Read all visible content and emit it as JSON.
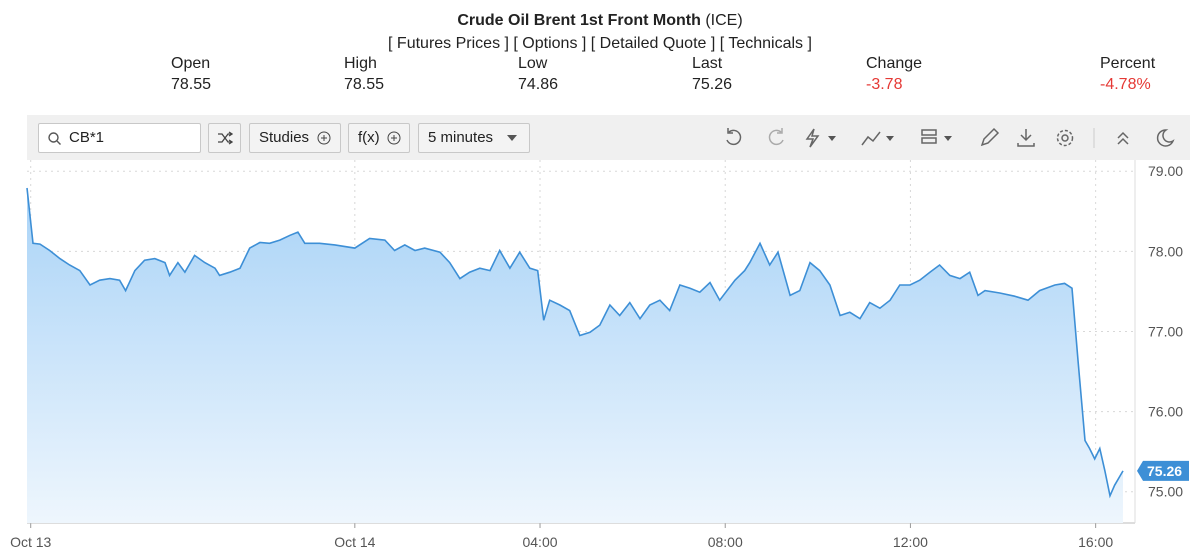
{
  "header": {
    "title": "Crude Oil Brent 1st Front Month",
    "exchange": "(ICE)",
    "links": [
      "[ Futures Prices ]",
      "[ Options ]",
      "[ Detailed Quote ]",
      "[ Technicals ]"
    ]
  },
  "quote": {
    "labels": [
      "Open",
      "High",
      "Low",
      "Last",
      "Change",
      "Percent"
    ],
    "values": [
      "78.55",
      "78.55",
      "74.86",
      "75.26",
      "-3.78",
      "-4.78%"
    ]
  },
  "toolbar": {
    "symbol": "CB*1",
    "studies": "Studies",
    "fx": "f(x)",
    "interval": "5 minutes"
  },
  "chart_data": {
    "type": "line",
    "color": "#3d8fd6",
    "grid": true,
    "x": [
      -7.08,
      -6.95,
      -6.8,
      -6.59,
      -6.37,
      -6.16,
      -5.94,
      -5.72,
      -5.51,
      -5.29,
      -5.08,
      -4.95,
      -4.75,
      -4.54,
      -4.32,
      -4.1,
      -4.0,
      -3.82,
      -3.67,
      -3.46,
      -3.24,
      -3.02,
      -2.92,
      -2.7,
      -2.48,
      -2.27,
      -2.05,
      -1.84,
      -1.62,
      -1.4,
      -1.23,
      -1.08,
      -0.76,
      -0.43,
      0,
      0.32,
      0.65,
      0.86,
      1.08,
      1.3,
      1.51,
      1.84,
      2.05,
      2.27,
      2.48,
      2.7,
      2.92,
      3.13,
      3.35,
      3.56,
      3.78,
      3.95,
      4.08,
      4.21,
      4.43,
      4.64,
      4.86,
      5.08,
      5.29,
      5.51,
      5.72,
      5.94,
      6.16,
      6.37,
      6.59,
      6.8,
      7.02,
      7.24,
      7.45,
      7.67,
      7.88,
      8.21,
      8.42,
      8.53,
      8.75,
      8.96,
      9.14,
      9.4,
      9.61,
      9.83,
      10.04,
      10.26,
      10.48,
      10.69,
      10.91,
      11.12,
      11.34,
      11.56,
      11.77,
      11.99,
      12.2,
      12.42,
      12.63,
      12.85,
      13.07,
      13.28,
      13.46,
      13.61,
      13.93,
      14.25,
      14.54,
      14.79,
      15.12,
      15.33,
      15.49,
      15.62,
      15.77,
      15.87,
      15.98,
      16.09,
      16.2,
      16.31,
      16.41,
      16.59
    ],
    "values": [
      78.79,
      78.1,
      78.09,
      78.01,
      77.91,
      77.83,
      77.76,
      77.58,
      77.64,
      77.66,
      77.64,
      77.51,
      77.76,
      77.89,
      77.91,
      77.86,
      77.7,
      77.86,
      77.74,
      77.95,
      77.86,
      77.79,
      77.7,
      77.74,
      77.79,
      78.04,
      78.11,
      78.1,
      78.14,
      78.2,
      78.24,
      78.1,
      78.1,
      78.08,
      78.04,
      78.16,
      78.14,
      78.01,
      78.08,
      78.01,
      78.04,
      77.99,
      77.86,
      77.66,
      77.74,
      77.79,
      77.76,
      78.01,
      77.79,
      77.99,
      77.79,
      77.76,
      77.14,
      77.39,
      77.33,
      77.26,
      76.95,
      76.99,
      77.08,
      77.33,
      77.2,
      77.36,
      77.16,
      77.33,
      77.39,
      77.26,
      77.58,
      77.54,
      77.49,
      77.61,
      77.39,
      77.64,
      77.76,
      77.86,
      78.1,
      77.83,
      77.99,
      77.45,
      77.51,
      77.86,
      77.76,
      77.58,
      77.2,
      77.24,
      77.16,
      77.36,
      77.29,
      77.39,
      77.58,
      77.58,
      77.64,
      77.74,
      77.83,
      77.7,
      77.66,
      77.74,
      77.45,
      77.51,
      77.48,
      77.44,
      77.39,
      77.51,
      77.58,
      77.6,
      77.54,
      76.64,
      75.64,
      75.54,
      75.41,
      75.54,
      75.26,
      74.95,
      75.08,
      75.26
    ],
    "xlim": [
      -7.08,
      16.85
    ],
    "xticks": [
      {
        "value": -7,
        "label": "Oct 13"
      },
      {
        "value": 0,
        "label": "Oct 14"
      },
      {
        "value": 4,
        "label": "04:00"
      },
      {
        "value": 8,
        "label": "08:00"
      },
      {
        "value": 12,
        "label": "12:00"
      },
      {
        "value": 16,
        "label": "16:00"
      }
    ],
    "ylim": [
      74.61,
      79.14
    ],
    "yticks": [
      {
        "value": 75,
        "label": "75.00"
      },
      {
        "value": 76,
        "label": "76.00"
      },
      {
        "value": 77,
        "label": "77.00"
      },
      {
        "value": 78,
        "label": "78.00"
      },
      {
        "value": 79,
        "label": "79.00"
      }
    ]
  }
}
